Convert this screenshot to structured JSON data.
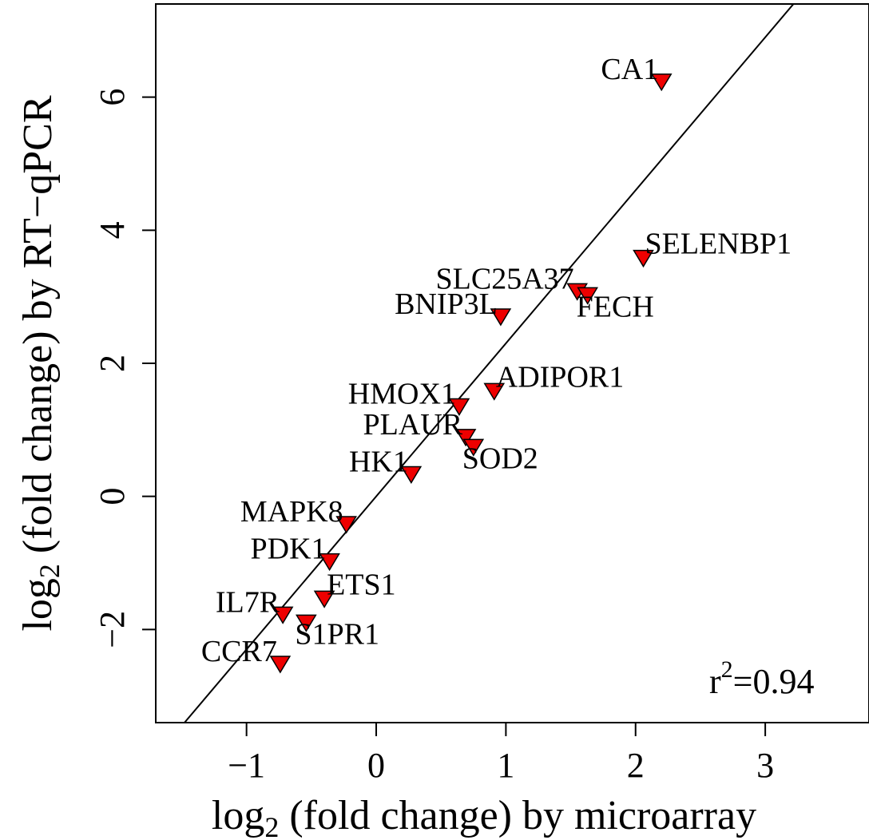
{
  "chart_data": {
    "type": "scatter",
    "xlabel": {
      "prefix": "log",
      "sub": "2",
      "suffix": " (fold change) by microarray"
    },
    "ylabel": {
      "prefix": "log",
      "sub": "2",
      "suffix": " (fold change) by RT−qPCR"
    },
    "xlim": [
      -1.7,
      3.8
    ],
    "ylim": [
      -3.4,
      7.4
    ],
    "xticks": [
      {
        "value": -1,
        "label": "−1"
      },
      {
        "value": 0,
        "label": "0"
      },
      {
        "value": 1,
        "label": "1"
      },
      {
        "value": 2,
        "label": "2"
      },
      {
        "value": 3,
        "label": "3"
      }
    ],
    "yticks": [
      {
        "value": -2,
        "label": "−2"
      },
      {
        "value": 0,
        "label": "0"
      },
      {
        "value": 2,
        "label": "2"
      },
      {
        "value": 4,
        "label": "4"
      },
      {
        "value": 6,
        "label": "6"
      }
    ],
    "grid": false,
    "marker": "downward-triangle",
    "marker_color": "#ee0000",
    "marker_edge": "#000000",
    "fit_line": {
      "intercept": 0.0,
      "slope": 2.3
    },
    "annotation": {
      "prefix": "r",
      "sup": "2",
      "suffix": "=0.94"
    },
    "points": [
      {
        "label": "CA1",
        "x": 2.2,
        "y": 6.25,
        "label_pos": "left"
      },
      {
        "label": "SELENBP1",
        "x": 2.06,
        "y": 3.6,
        "label_pos": "right"
      },
      {
        "label": "SLC25A37",
        "x": 1.55,
        "y": 3.1,
        "label_pos": "left"
      },
      {
        "label": "FECH",
        "x": 1.63,
        "y": 3.04,
        "label_pos": "below"
      },
      {
        "label": "BNIP3L",
        "x": 0.96,
        "y": 2.72,
        "label_pos": "left"
      },
      {
        "label": "ADIPOR1",
        "x": 0.91,
        "y": 1.6,
        "label_pos": "right"
      },
      {
        "label": "HMOX1",
        "x": 0.64,
        "y": 1.37,
        "label_pos": "left"
      },
      {
        "label": "PLAUR",
        "x": 0.69,
        "y": 0.91,
        "label_pos": "left"
      },
      {
        "label": "SOD2",
        "x": 0.75,
        "y": 0.76,
        "label_pos": "below"
      },
      {
        "label": "HK1",
        "x": 0.27,
        "y": 0.35,
        "label_pos": "left"
      },
      {
        "label": "MAPK8",
        "x": -0.23,
        "y": -0.4,
        "label_pos": "left"
      },
      {
        "label": "PDK1",
        "x": -0.36,
        "y": -0.96,
        "label_pos": "left"
      },
      {
        "label": "ETS1",
        "x": -0.4,
        "y": -1.52,
        "label_pos": "above-right"
      },
      {
        "label": "IL7R",
        "x": -0.72,
        "y": -1.76,
        "label_pos": "left"
      },
      {
        "label": "S1PR1",
        "x": -0.54,
        "y": -1.88,
        "label_pos": "below"
      },
      {
        "label": "CCR7",
        "x": -0.74,
        "y": -2.5,
        "label_pos": "left"
      }
    ]
  }
}
